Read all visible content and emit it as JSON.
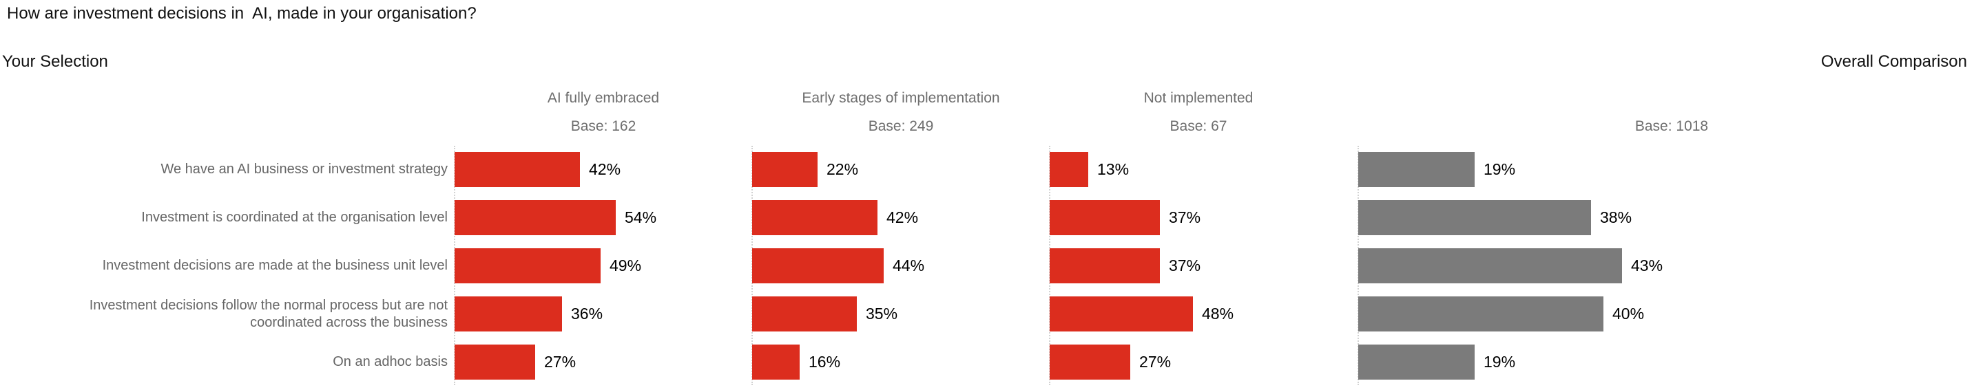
{
  "page": {
    "title": "How are investment decisions in  AI, made in your organisation?",
    "left_section_label": "Your Selection",
    "right_section_label": "Overall Comparison"
  },
  "colors": {
    "selection_bar": "#dc2d1e",
    "overall_bar": "#7b7b7b",
    "heading_text": "#111111",
    "column_header_text": "#6e6e6e",
    "row_label_text": "#666666",
    "value_text": "#000000",
    "grid_dotted": "#d2d2d2"
  },
  "chart_data": {
    "type": "bar",
    "orientation": "horizontal",
    "value_format": "percent",
    "grid": "dotted-vertical-axis-lines",
    "categories": [
      "We have an AI business or investment strategy",
      "Investment is coordinated at the organisation level",
      "Investment decisions are made at the business unit level",
      "Investment decisions follow the normal process but are not\ncoordinated across the business",
      "On an adhoc basis"
    ],
    "groups": [
      {
        "name": "AI fully embraced",
        "base_label": "Base: 162",
        "color_key": "selection_bar",
        "values": [
          42,
          54,
          49,
          36,
          27
        ],
        "value_labels": [
          "42%",
          "54%",
          "49%",
          "36%",
          "27%"
        ]
      },
      {
        "name": "Early stages of implementation",
        "base_label": "Base: 249",
        "color_key": "selection_bar",
        "values": [
          22,
          42,
          44,
          35,
          16
        ],
        "value_labels": [
          "22%",
          "42%",
          "44%",
          "35%",
          "16%"
        ]
      },
      {
        "name": "Not implemented",
        "base_label": "Base: 67",
        "color_key": "selection_bar",
        "values": [
          13,
          37,
          37,
          48,
          27
        ],
        "value_labels": [
          "13%",
          "37%",
          "37%",
          "48%",
          "27%"
        ]
      },
      {
        "name": "",
        "base_label": "Base: 1018",
        "color_key": "overall_bar",
        "values": [
          19,
          38,
          43,
          40,
          19
        ],
        "value_labels": [
          "19%",
          "38%",
          "43%",
          "40%",
          "19%"
        ]
      }
    ],
    "xlim": [
      0,
      100
    ]
  }
}
